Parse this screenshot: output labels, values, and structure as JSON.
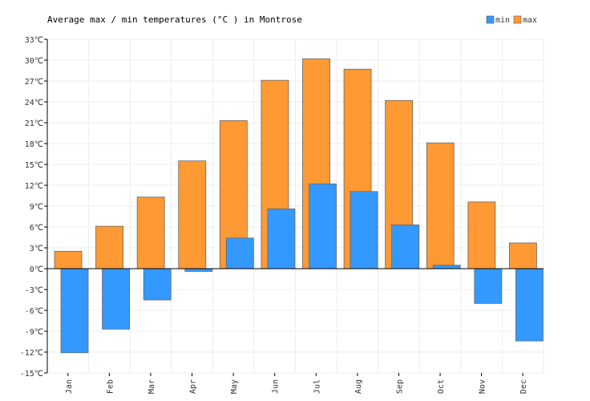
{
  "chart_data": {
    "type": "bar",
    "title": "Average max / min temperatures (°C ) in Montrose",
    "xlabel": "",
    "ylabel": "",
    "categories": [
      "Jan",
      "Feb",
      "Mar",
      "Apr",
      "May",
      "Jun",
      "Jul",
      "Aug",
      "Sep",
      "Oct",
      "Nov",
      "Dec"
    ],
    "series": [
      {
        "name": "min",
        "color": "#3399ff",
        "values": [
          -12.1,
          -8.7,
          -4.5,
          -0.4,
          4.4,
          8.6,
          12.2,
          11.1,
          6.3,
          0.5,
          -5.0,
          -10.4
        ]
      },
      {
        "name": "max",
        "color": "#ff9933",
        "values": [
          2.5,
          6.1,
          10.3,
          15.5,
          21.3,
          27.1,
          30.2,
          28.7,
          24.2,
          18.1,
          9.6,
          3.7
        ]
      }
    ],
    "ylim": [
      -15,
      33
    ],
    "yticks": [
      "33℃",
      "30℃",
      "27℃",
      "24℃",
      "21℃",
      "18℃",
      "15℃",
      "12℃",
      "9℃",
      "6℃",
      "3℃",
      "0℃",
      "-3℃",
      "-6℃",
      "-9℃",
      "-12℃",
      "-15℃"
    ],
    "grid": true,
    "legend_position": "top-right"
  }
}
